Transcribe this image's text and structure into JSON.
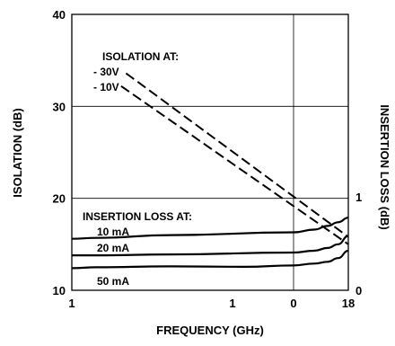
{
  "chart_data": {
    "type": "line",
    "title": "",
    "xlabel": "FREQUENCY (GHz)",
    "ylabel": "ISOLATION (dB)",
    "y2label": "INSERTION LOSS (dB)",
    "x_tick_labels": [
      "1",
      "1",
      "0",
      "18"
    ],
    "y_ticks": [
      10,
      20,
      30,
      40
    ],
    "ylim": [
      10,
      40
    ],
    "y2_ticks": [
      0,
      1
    ],
    "grid": true,
    "isolation_header": "ISOLATION AT:",
    "insertion_header": "INSERTION LOSS AT:",
    "series": [
      {
        "name": "- 30V",
        "group": "isolation",
        "dash": true,
        "x": [
          3.2,
          18
        ],
        "values": [
          33.6,
          15.8
        ]
      },
      {
        "name": "- 10V",
        "group": "isolation",
        "dash": true,
        "x": [
          3.0,
          18
        ],
        "values": [
          32.2,
          15.0
        ]
      },
      {
        "name": "10 mA",
        "group": "insertion",
        "dash": false,
        "x": [
          1,
          2,
          5,
          10,
          13,
          15,
          16.5,
          18
        ],
        "values": [
          15.6,
          15.7,
          16.0,
          16.3,
          16.6,
          17.0,
          17.4,
          17.9
        ]
      },
      {
        "name": "20 mA",
        "group": "insertion",
        "dash": false,
        "x": [
          1,
          2,
          5,
          10,
          13,
          15,
          16.5,
          18
        ],
        "values": [
          13.8,
          13.8,
          13.9,
          14.1,
          14.3,
          14.6,
          15.0,
          15.9
        ]
      },
      {
        "name": "50 mA",
        "group": "insertion",
        "dash": false,
        "x": [
          1,
          2,
          5,
          8,
          10,
          13,
          15,
          16.5,
          18
        ],
        "values": [
          12.4,
          12.5,
          12.6,
          12.55,
          12.7,
          12.9,
          13.1,
          13.5,
          14.3
        ]
      }
    ]
  }
}
